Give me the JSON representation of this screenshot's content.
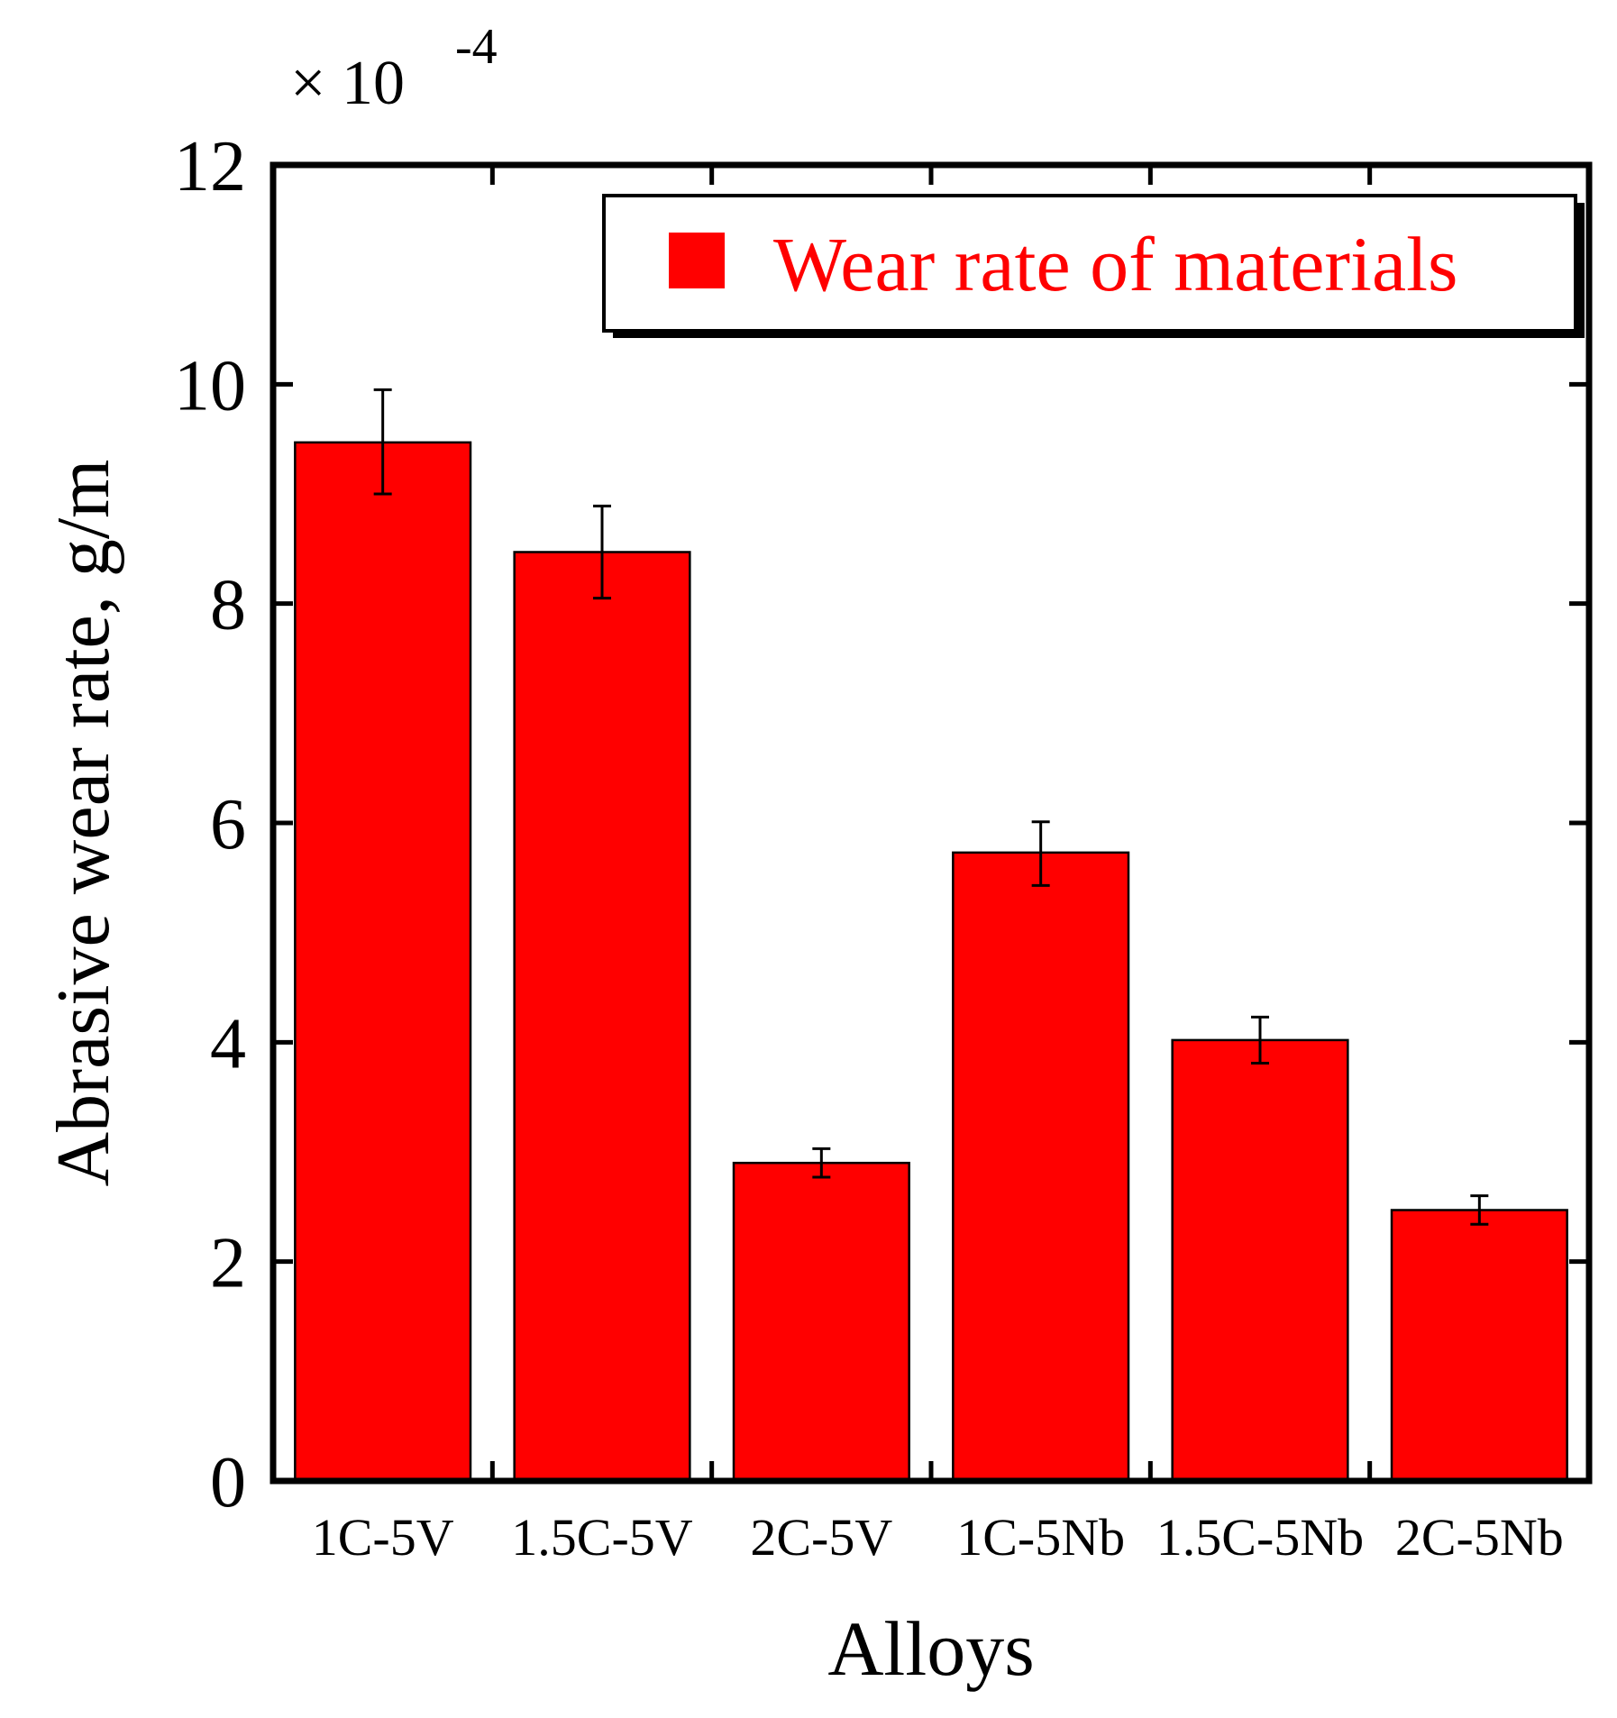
{
  "chart_data": {
    "type": "bar",
    "title": "",
    "xlabel": "Alloys",
    "ylabel": "Abrasive wear rate, g/m",
    "scale_multiplier": "× 10",
    "scale_exponent": "-4",
    "categories": [
      "1C-5V",
      "1.5C-5V",
      "2C-5V",
      "1C-5Nb",
      "1.5C-5Nb",
      "2C-5Nb"
    ],
    "series": [
      {
        "name": "Wear rate of materials",
        "values": [
          9.47,
          8.47,
          2.9,
          5.73,
          4.02,
          2.47
        ],
        "error_upper": [
          9.95,
          8.89,
          3.03,
          6.01,
          4.23,
          2.6
        ],
        "error_lower": [
          9.0,
          8.05,
          2.77,
          5.43,
          3.81,
          2.34
        ]
      }
    ],
    "ylim": [
      0,
      12
    ],
    "yticks": [
      0,
      2,
      4,
      6,
      8,
      10,
      12
    ],
    "ytick_labels": [
      "0",
      "2",
      "4",
      "6",
      "8",
      "10",
      "12"
    ],
    "grid": false,
    "legend_position": "top-right",
    "colors": {
      "bar": "#ff0000",
      "legend_text": "#ff0000",
      "axis": "#000000"
    }
  }
}
